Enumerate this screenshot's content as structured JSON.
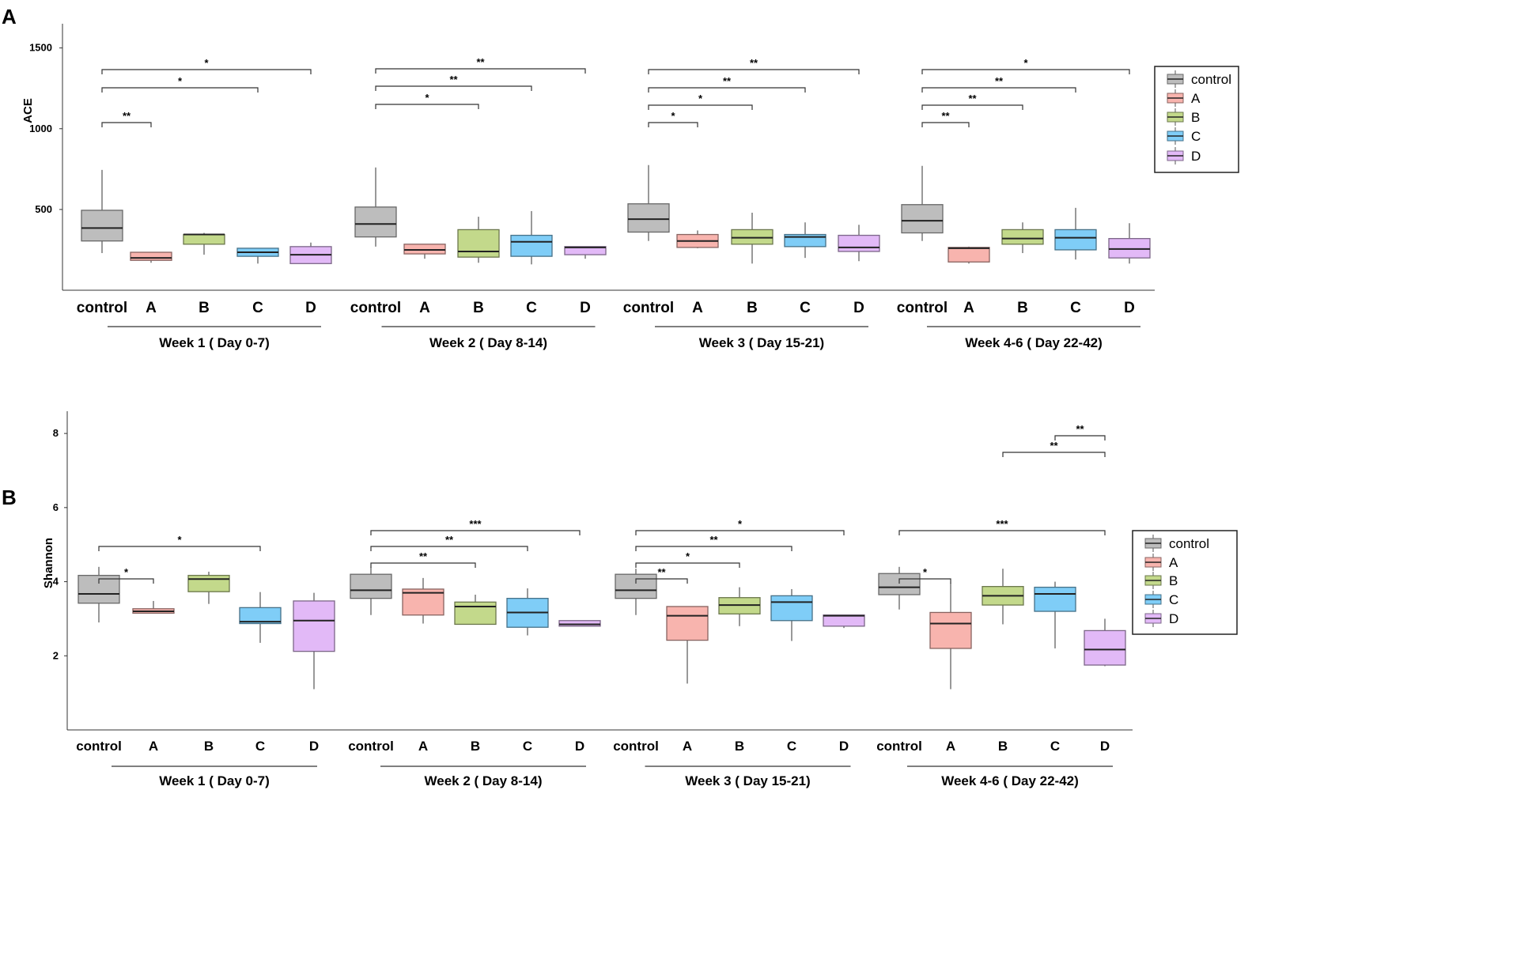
{
  "figure": {
    "panel_labels": [
      "A",
      "B"
    ]
  },
  "colors": {
    "control": "#bdbdbd",
    "A": "#f8b4ae",
    "B": "#c3d98b",
    "C": "#7fcdf7",
    "D": "#e2b9f7"
  },
  "chart_data": [
    {
      "type": "box",
      "panel": "A",
      "title": "",
      "ylabel": "ACE",
      "ylim": [
        0,
        1650
      ],
      "yticks": [
        500,
        1000,
        1500
      ],
      "groups": [
        "control",
        "A",
        "B",
        "C",
        "D"
      ],
      "weeks": [
        {
          "label": "Week 1 ( Day 0-7)",
          "boxes": [
            {
              "group": "control",
              "min": 230,
              "q1": 305,
              "median": 385,
              "q3": 495,
              "max": 745
            },
            {
              "group": "A",
              "min": 170,
              "q1": 185,
              "median": 200,
              "q3": 235,
              "max": 235
            },
            {
              "group": "B",
              "min": 220,
              "q1": 285,
              "median": 345,
              "q3": 345,
              "max": 355
            },
            {
              "group": "C",
              "min": 165,
              "q1": 210,
              "median": 235,
              "q3": 260,
              "max": 260
            },
            {
              "group": "D",
              "min": 165,
              "q1": 165,
              "median": 220,
              "q3": 270,
              "max": 295
            }
          ],
          "significance": [
            {
              "from": "control",
              "to": "A",
              "label": "**"
            },
            {
              "from": "control",
              "to": "C",
              "label": "*"
            },
            {
              "from": "control",
              "to": "D",
              "label": "*"
            }
          ]
        },
        {
          "label": "Week 2 ( Day 8-14)",
          "boxes": [
            {
              "group": "control",
              "min": 270,
              "q1": 330,
              "median": 410,
              "q3": 515,
              "max": 760
            },
            {
              "group": "A",
              "min": 195,
              "q1": 225,
              "median": 250,
              "q3": 285,
              "max": 285
            },
            {
              "group": "B",
              "min": 170,
              "q1": 205,
              "median": 240,
              "q3": 375,
              "max": 455
            },
            {
              "group": "C",
              "min": 160,
              "q1": 210,
              "median": 300,
              "q3": 340,
              "max": 490
            },
            {
              "group": "D",
              "min": 195,
              "q1": 220,
              "median": 265,
              "q3": 270,
              "max": 270
            }
          ],
          "significance": [
            {
              "from": "control",
              "to": "B",
              "label": "*"
            },
            {
              "from": "control",
              "to": "C",
              "label": "**"
            },
            {
              "from": "control",
              "to": "D",
              "label": "**"
            }
          ]
        },
        {
          "label": "Week 3 ( Day 15-21)",
          "boxes": [
            {
              "group": "control",
              "min": 305,
              "q1": 360,
              "median": 440,
              "q3": 535,
              "max": 775
            },
            {
              "group": "A",
              "min": 260,
              "q1": 265,
              "median": 305,
              "q3": 345,
              "max": 370
            },
            {
              "group": "B",
              "min": 165,
              "q1": 285,
              "median": 325,
              "q3": 375,
              "max": 480
            },
            {
              "group": "C",
              "min": 200,
              "q1": 270,
              "median": 330,
              "q3": 345,
              "max": 420
            },
            {
              "group": "D",
              "min": 180,
              "q1": 240,
              "median": 265,
              "q3": 340,
              "max": 405
            }
          ],
          "significance": [
            {
              "from": "control",
              "to": "A",
              "label": "*"
            },
            {
              "from": "control",
              "to": "B",
              "label": "*"
            },
            {
              "from": "control",
              "to": "C",
              "label": "**"
            },
            {
              "from": "control",
              "to": "D",
              "label": "**"
            }
          ]
        },
        {
          "label": "Week 4-6 ( Day 22-42)",
          "boxes": [
            {
              "group": "control",
              "min": 305,
              "q1": 355,
              "median": 430,
              "q3": 530,
              "max": 770
            },
            {
              "group": "A",
              "min": 165,
              "q1": 175,
              "median": 260,
              "q3": 265,
              "max": 270
            },
            {
              "group": "B",
              "min": 230,
              "q1": 285,
              "median": 320,
              "q3": 375,
              "max": 420
            },
            {
              "group": "C",
              "min": 190,
              "q1": 250,
              "median": 325,
              "q3": 375,
              "max": 510
            },
            {
              "group": "D",
              "min": 165,
              "q1": 200,
              "median": 255,
              "q3": 320,
              "max": 415
            }
          ],
          "significance": [
            {
              "from": "control",
              "to": "A",
              "label": "**"
            },
            {
              "from": "control",
              "to": "B",
              "label": "**"
            },
            {
              "from": "control",
              "to": "C",
              "label": "**"
            },
            {
              "from": "control",
              "to": "D",
              "label": "*"
            }
          ]
        }
      ],
      "legend": {
        "position": "right",
        "entries": [
          "control",
          "A",
          "B",
          "C",
          "D"
        ]
      }
    },
    {
      "type": "box",
      "panel": "B",
      "title": "",
      "ylabel": "Shannon",
      "ylim": [
        0,
        8.6
      ],
      "yticks": [
        2,
        4,
        6,
        8
      ],
      "groups": [
        "control",
        "A",
        "B",
        "C",
        "D"
      ],
      "weeks": [
        {
          "label": "Week 1 ( Day 0-7)",
          "boxes": [
            {
              "group": "control",
              "min": 2.9,
              "q1": 3.42,
              "median": 3.67,
              "q3": 4.17,
              "max": 4.4
            },
            {
              "group": "A",
              "min": 3.15,
              "q1": 3.15,
              "median": 3.2,
              "q3": 3.27,
              "max": 3.48
            },
            {
              "group": "B",
              "min": 3.4,
              "q1": 3.73,
              "median": 4.07,
              "q3": 4.17,
              "max": 4.27
            },
            {
              "group": "C",
              "min": 2.35,
              "q1": 2.87,
              "median": 2.92,
              "q3": 3.3,
              "max": 3.72
            },
            {
              "group": "D",
              "min": 1.1,
              "q1": 2.12,
              "median": 2.95,
              "q3": 3.48,
              "max": 3.7
            }
          ],
          "significance": [
            {
              "from": "control",
              "to": "A",
              "label": "*"
            },
            {
              "from": "control",
              "to": "C",
              "label": "*"
            }
          ]
        },
        {
          "label": "Week 2 ( Day 8-14)",
          "boxes": [
            {
              "group": "control",
              "min": 3.1,
              "q1": 3.55,
              "median": 3.77,
              "q3": 4.2,
              "max": 4.4
            },
            {
              "group": "A",
              "min": 2.87,
              "q1": 3.1,
              "median": 3.7,
              "q3": 3.8,
              "max": 4.1
            },
            {
              "group": "B",
              "min": 2.85,
              "q1": 2.85,
              "median": 3.33,
              "q3": 3.45,
              "max": 3.65
            },
            {
              "group": "C",
              "min": 2.55,
              "q1": 2.77,
              "median": 3.17,
              "q3": 3.55,
              "max": 3.82
            },
            {
              "group": "D",
              "min": 2.8,
              "q1": 2.8,
              "median": 2.85,
              "q3": 2.95,
              "max": 2.95
            }
          ],
          "significance": [
            {
              "from": "control",
              "to": "B",
              "label": "**"
            },
            {
              "from": "control",
              "to": "C",
              "label": "**"
            },
            {
              "from": "control",
              "to": "D",
              "label": "***"
            }
          ]
        },
        {
          "label": "Week 3 ( Day 15-21)",
          "boxes": [
            {
              "group": "control",
              "min": 3.1,
              "q1": 3.55,
              "median": 3.77,
              "q3": 4.2,
              "max": 4.35
            },
            {
              "group": "A",
              "min": 1.25,
              "q1": 2.42,
              "median": 3.08,
              "q3": 3.33,
              "max": 3.33
            },
            {
              "group": "B",
              "min": 2.8,
              "q1": 3.13,
              "median": 3.37,
              "q3": 3.57,
              "max": 3.85
            },
            {
              "group": "C",
              "min": 2.4,
              "q1": 2.95,
              "median": 3.45,
              "q3": 3.62,
              "max": 3.8
            },
            {
              "group": "D",
              "min": 2.75,
              "q1": 2.8,
              "median": 3.08,
              "q3": 3.1,
              "max": 3.1
            }
          ],
          "significance": [
            {
              "from": "control",
              "to": "A",
              "label": "**"
            },
            {
              "from": "control",
              "to": "B",
              "label": "*"
            },
            {
              "from": "control",
              "to": "C",
              "label": "**"
            },
            {
              "from": "control",
              "to": "D",
              "label": "*"
            }
          ]
        },
        {
          "label": "Week 4-6 ( Day 22-42)",
          "boxes": [
            {
              "group": "control",
              "min": 3.25,
              "q1": 3.65,
              "median": 3.85,
              "q3": 4.22,
              "max": 4.4
            },
            {
              "group": "A",
              "min": 1.1,
              "q1": 2.2,
              "median": 2.87,
              "q3": 3.17,
              "max": 3.97
            },
            {
              "group": "B",
              "min": 2.85,
              "q1": 3.37,
              "median": 3.62,
              "q3": 3.87,
              "max": 4.35
            },
            {
              "group": "C",
              "min": 2.2,
              "q1": 3.2,
              "median": 3.67,
              "q3": 3.85,
              "max": 4.0
            },
            {
              "group": "D",
              "min": 1.72,
              "q1": 1.75,
              "median": 2.17,
              "q3": 2.68,
              "max": 3.0
            }
          ],
          "significance": [
            {
              "from": "control",
              "to": "A",
              "label": "*"
            },
            {
              "from": "control",
              "to": "D",
              "label": "***"
            },
            {
              "from": "B",
              "to": "D",
              "label": "**"
            },
            {
              "from": "C",
              "to": "D",
              "label": "**"
            }
          ]
        }
      ],
      "legend": {
        "position": "right",
        "entries": [
          "control",
          "A",
          "B",
          "C",
          "D"
        ]
      }
    }
  ]
}
